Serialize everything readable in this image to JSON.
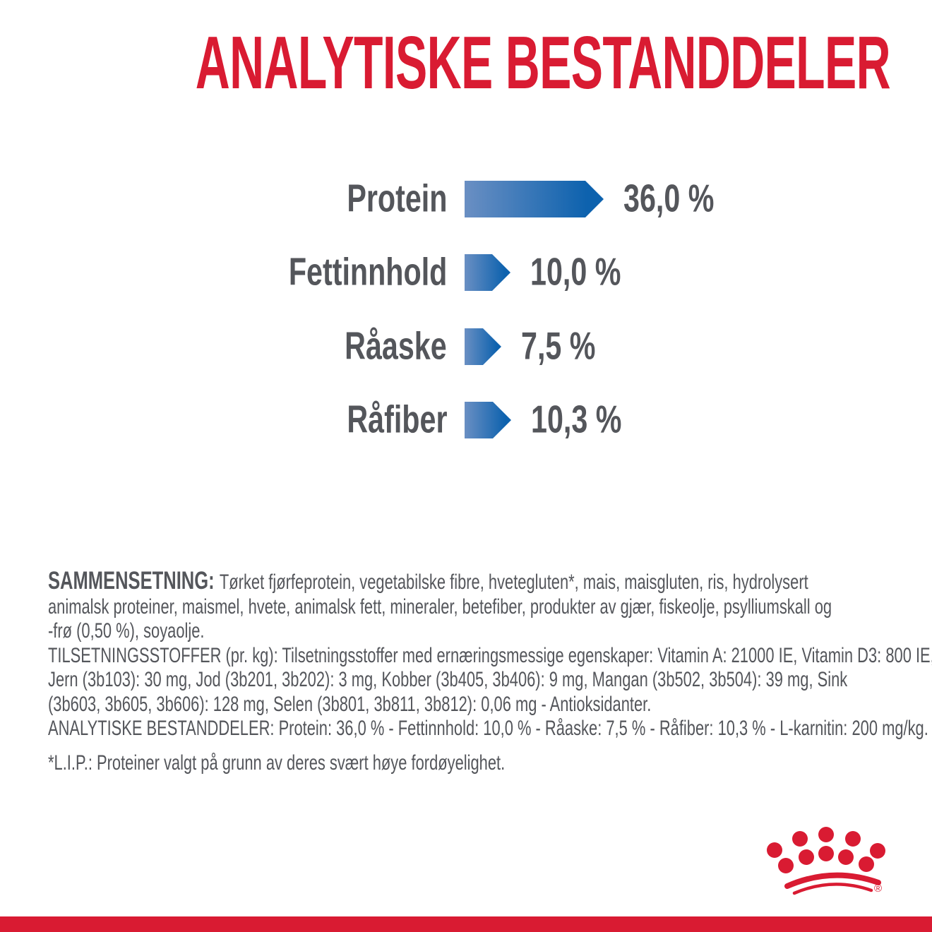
{
  "title": "ANALYTISKE BESTANDDELER",
  "colors": {
    "brand_red": "#d91b32",
    "text_gray": "#54565b",
    "bar_gradient_light": "#6a8fc3",
    "bar_gradient_dark": "#0d62ae"
  },
  "chart_data": {
    "type": "bar",
    "orientation": "horizontal",
    "title": "ANALYTISKE BESTANDDELER",
    "categories": [
      "Protein",
      "Fettinnhold",
      "Råaske",
      "Råfiber"
    ],
    "values": [
      36.0,
      10.0,
      7.5,
      10.3
    ],
    "value_labels": [
      "36,0 %",
      "10,0 %",
      "7,5 %",
      "10,3 %"
    ],
    "unit": "%",
    "bar_style": "arrow-right-gradient",
    "grid": "off",
    "legend": "none"
  },
  "composition": {
    "heading": "SAMMENSETNING:",
    "lines": [
      "Tørket fjørfeprotein, vegetabilske fibre, hvetegluten*, mais, maisgluten, ris, hydrolysert",
      "animalsk proteiner, maismel, hvete, animalsk fett, mineraler, betefiber, produkter av gjær, fiskeolje, psylliumskall og",
      "-frø (0,50 %), soyaolje."
    ]
  },
  "additives": {
    "lines": [
      "TILSETNINGSSTOFFER (pr. kg): Tilsetningsstoffer med ernæringsmessige egenskaper: Vitamin A: 21000 IE, Vitamin D3: 800 IE,",
      "Jern (3b103): 30 mg, Jod (3b201, 3b202): 3 mg, Kobber (3b405, 3b406): 9 mg, Mangan (3b502, 3b504): 39 mg, Sink",
      "(3b603, 3b605, 3b606): 128 mg, Selen (3b801, 3b811, 3b812): 0,06 mg - Antioksidanter."
    ]
  },
  "analytical": {
    "line": "ANALYTISKE BESTANDDELER: Protein: 36,0 % - Fettinnhold: 10,0 % - Råaske: 7,5 % - Råfiber: 10,3 % - L-karnitin: 200 mg/kg."
  },
  "footnote": "*L.I.P.: Proteiner valgt på grunn av deres svært høye fordøyelighet.",
  "logo": {
    "name": "royal-canin-crown",
    "registered_mark": "®"
  }
}
